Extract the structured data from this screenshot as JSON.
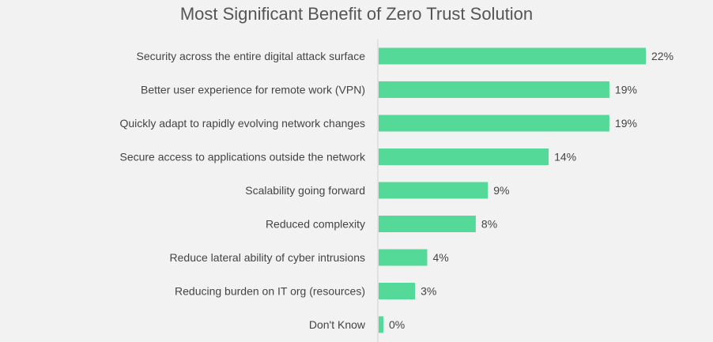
{
  "chart_data": {
    "type": "bar",
    "orientation": "horizontal",
    "title": "Most Significant Benefit of Zero Trust Solution",
    "categories": [
      "Security across the entire digital attack surface",
      "Better user experience for remote work (VPN)",
      "Quickly adapt to rapidly evolving network changes",
      "Secure access to applications outside the network",
      "Scalability going forward",
      "Reduced complexity",
      "Reduce lateral ability of cyber intrusions",
      "Reducing burden on IT org (resources)",
      "Don't Know"
    ],
    "values": [
      22,
      19,
      19,
      14,
      9,
      8,
      4,
      3,
      0
    ],
    "value_labels": [
      "22%",
      "19%",
      "19%",
      "14%",
      "9%",
      "8%",
      "4%",
      "3%",
      "0%"
    ],
    "unit": "%",
    "xlim": [
      0,
      22
    ],
    "grid": false,
    "legend": "none",
    "bar_color": "#55d998"
  }
}
